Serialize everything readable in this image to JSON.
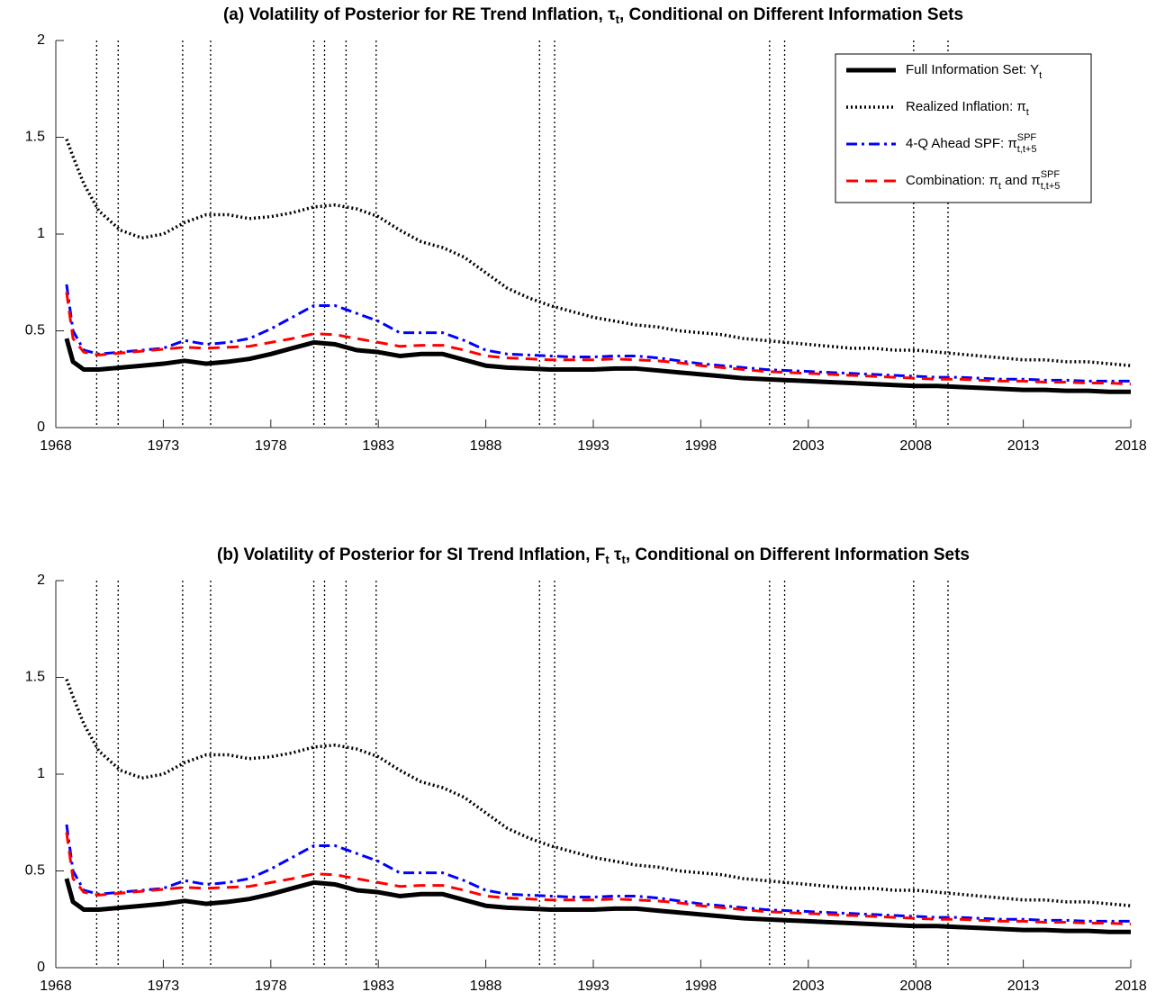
{
  "chart_data": [
    {
      "type": "line",
      "title": [
        {
          "t": "(a) Volatility of Posterior for RE Trend Inflation, τ"
        },
        {
          "sub": "t"
        },
        {
          "t": ", Conditional on Different Information Sets"
        }
      ],
      "x": [
        1968.5,
        1968.8,
        1969.3,
        1970,
        1971,
        1972,
        1973,
        1974,
        1975,
        1976,
        1977,
        1978,
        1979,
        1980,
        1981,
        1982,
        1983,
        1984,
        1985,
        1986,
        1987,
        1988,
        1989,
        1990,
        1991,
        1992,
        1993,
        1994,
        1995,
        1996,
        1997,
        1998,
        1999,
        2000,
        2001,
        2002,
        2003,
        2004,
        2005,
        2006,
        2007,
        2008,
        2009,
        2010,
        2011,
        2012,
        2013,
        2014,
        2015,
        2016,
        2017,
        2018
      ],
      "series": [
        {
          "name": [
            {
              "t": "Full Information Set: Y"
            },
            {
              "sub": "t"
            }
          ],
          "color": "#000000",
          "style": "solid",
          "values": [
            0.46,
            0.34,
            0.3,
            0.3,
            0.31,
            0.32,
            0.33,
            0.345,
            0.33,
            0.34,
            0.355,
            0.38,
            0.41,
            0.44,
            0.43,
            0.4,
            0.39,
            0.37,
            0.38,
            0.38,
            0.35,
            0.32,
            0.31,
            0.305,
            0.3,
            0.3,
            0.3,
            0.305,
            0.305,
            0.295,
            0.285,
            0.275,
            0.265,
            0.255,
            0.25,
            0.245,
            0.24,
            0.235,
            0.23,
            0.225,
            0.22,
            0.215,
            0.215,
            0.21,
            0.205,
            0.2,
            0.195,
            0.195,
            0.19,
            0.19,
            0.185,
            0.185
          ]
        },
        {
          "name": [
            {
              "t": "Realized Inflation: π"
            },
            {
              "sub": "t"
            }
          ],
          "color": "#000000",
          "style": "dotted",
          "values": [
            1.49,
            1.4,
            1.26,
            1.12,
            1.02,
            0.98,
            1.0,
            1.06,
            1.1,
            1.1,
            1.08,
            1.09,
            1.11,
            1.14,
            1.15,
            1.13,
            1.09,
            1.02,
            0.96,
            0.93,
            0.88,
            0.8,
            0.72,
            0.67,
            0.63,
            0.6,
            0.57,
            0.55,
            0.53,
            0.52,
            0.5,
            0.49,
            0.48,
            0.46,
            0.45,
            0.44,
            0.43,
            0.42,
            0.41,
            0.41,
            0.4,
            0.4,
            0.39,
            0.38,
            0.37,
            0.36,
            0.35,
            0.35,
            0.34,
            0.34,
            0.33,
            0.32
          ]
        },
        {
          "name": [
            {
              "t": "4-Q Ahead SPF: π"
            },
            {
              "sup": "SPF"
            },
            {
              "sub": "t,t+5"
            }
          ],
          "color": "#0000ff",
          "style": "dashdot",
          "values": [
            0.74,
            0.5,
            0.4,
            0.38,
            0.39,
            0.4,
            0.41,
            0.45,
            0.43,
            0.44,
            0.46,
            0.51,
            0.57,
            0.63,
            0.63,
            0.59,
            0.55,
            0.49,
            0.49,
            0.49,
            0.45,
            0.4,
            0.38,
            0.375,
            0.37,
            0.365,
            0.365,
            0.37,
            0.37,
            0.36,
            0.345,
            0.33,
            0.32,
            0.31,
            0.3,
            0.295,
            0.29,
            0.285,
            0.28,
            0.275,
            0.27,
            0.265,
            0.26,
            0.26,
            0.255,
            0.25,
            0.25,
            0.245,
            0.245,
            0.24,
            0.24,
            0.24
          ]
        },
        {
          "name": [
            {
              "t": "Combination: π"
            },
            {
              "sub": "t"
            },
            {
              "t": " and π"
            },
            {
              "sup": "SPF"
            },
            {
              "sub": "t,t+5"
            }
          ],
          "color": "#ff0000",
          "style": "dashed",
          "values": [
            0.7,
            0.46,
            0.39,
            0.375,
            0.385,
            0.395,
            0.405,
            0.415,
            0.41,
            0.415,
            0.42,
            0.44,
            0.46,
            0.485,
            0.48,
            0.46,
            0.44,
            0.42,
            0.425,
            0.425,
            0.4,
            0.37,
            0.36,
            0.355,
            0.35,
            0.35,
            0.35,
            0.355,
            0.35,
            0.345,
            0.335,
            0.32,
            0.31,
            0.3,
            0.29,
            0.285,
            0.28,
            0.275,
            0.27,
            0.265,
            0.26,
            0.255,
            0.25,
            0.25,
            0.245,
            0.24,
            0.24,
            0.235,
            0.235,
            0.23,
            0.23,
            0.225
          ]
        }
      ],
      "recession_lines": [
        1969.9,
        1970.9,
        1973.9,
        1975.2,
        1980.0,
        1980.5,
        1981.5,
        1982.9,
        1990.5,
        1991.2,
        2001.2,
        2001.9,
        2007.9,
        2009.5
      ],
      "xlim": [
        1968,
        2018
      ],
      "xticks": [
        1968,
        1973,
        1978,
        1983,
        1988,
        1993,
        1998,
        2003,
        2008,
        2013,
        2018
      ],
      "ylim": [
        0,
        2
      ],
      "yticks": [
        0,
        0.5,
        1,
        1.5,
        2
      ],
      "legend": "northeast"
    },
    {
      "type": "line",
      "title": [
        {
          "t": "(b) Volatility of Posterior for SI Trend Inflation, F"
        },
        {
          "sub": "t"
        },
        {
          "t": " τ"
        },
        {
          "sub": "t"
        },
        {
          "t": ", Conditional on Different Information Sets"
        }
      ],
      "x": [
        1968.5,
        1968.8,
        1969.3,
        1970,
        1971,
        1972,
        1973,
        1974,
        1975,
        1976,
        1977,
        1978,
        1979,
        1980,
        1981,
        1982,
        1983,
        1984,
        1985,
        1986,
        1987,
        1988,
        1989,
        1990,
        1991,
        1992,
        1993,
        1994,
        1995,
        1996,
        1997,
        1998,
        1999,
        2000,
        2001,
        2002,
        2003,
        2004,
        2005,
        2006,
        2007,
        2008,
        2009,
        2010,
        2011,
        2012,
        2013,
        2014,
        2015,
        2016,
        2017,
        2018
      ],
      "series": [
        {
          "color": "#000000",
          "style": "solid",
          "values": [
            0.46,
            0.34,
            0.3,
            0.3,
            0.31,
            0.32,
            0.33,
            0.345,
            0.33,
            0.34,
            0.355,
            0.38,
            0.41,
            0.44,
            0.43,
            0.4,
            0.39,
            0.37,
            0.38,
            0.38,
            0.35,
            0.32,
            0.31,
            0.305,
            0.3,
            0.3,
            0.3,
            0.305,
            0.305,
            0.295,
            0.285,
            0.275,
            0.265,
            0.255,
            0.25,
            0.245,
            0.24,
            0.235,
            0.23,
            0.225,
            0.22,
            0.215,
            0.215,
            0.21,
            0.205,
            0.2,
            0.195,
            0.195,
            0.19,
            0.19,
            0.185,
            0.185
          ]
        },
        {
          "color": "#000000",
          "style": "dotted",
          "values": [
            1.49,
            1.4,
            1.26,
            1.12,
            1.02,
            0.98,
            1.0,
            1.06,
            1.1,
            1.1,
            1.08,
            1.09,
            1.11,
            1.14,
            1.15,
            1.13,
            1.09,
            1.02,
            0.96,
            0.93,
            0.88,
            0.8,
            0.72,
            0.67,
            0.63,
            0.6,
            0.57,
            0.55,
            0.53,
            0.52,
            0.5,
            0.49,
            0.48,
            0.46,
            0.45,
            0.44,
            0.43,
            0.42,
            0.41,
            0.41,
            0.4,
            0.4,
            0.39,
            0.38,
            0.37,
            0.36,
            0.35,
            0.35,
            0.34,
            0.34,
            0.33,
            0.32
          ]
        },
        {
          "color": "#0000ff",
          "style": "dashdot",
          "values": [
            0.74,
            0.5,
            0.4,
            0.38,
            0.39,
            0.4,
            0.41,
            0.45,
            0.43,
            0.44,
            0.46,
            0.51,
            0.57,
            0.63,
            0.63,
            0.59,
            0.55,
            0.49,
            0.49,
            0.49,
            0.45,
            0.4,
            0.38,
            0.375,
            0.37,
            0.365,
            0.365,
            0.37,
            0.37,
            0.36,
            0.345,
            0.33,
            0.32,
            0.31,
            0.3,
            0.295,
            0.29,
            0.285,
            0.28,
            0.275,
            0.27,
            0.265,
            0.26,
            0.26,
            0.255,
            0.25,
            0.25,
            0.245,
            0.245,
            0.24,
            0.24,
            0.24
          ]
        },
        {
          "color": "#ff0000",
          "style": "dashed",
          "values": [
            0.7,
            0.46,
            0.39,
            0.375,
            0.385,
            0.395,
            0.405,
            0.415,
            0.41,
            0.415,
            0.42,
            0.44,
            0.46,
            0.485,
            0.48,
            0.46,
            0.44,
            0.42,
            0.425,
            0.425,
            0.4,
            0.37,
            0.36,
            0.355,
            0.35,
            0.35,
            0.35,
            0.355,
            0.35,
            0.345,
            0.335,
            0.32,
            0.31,
            0.3,
            0.29,
            0.285,
            0.28,
            0.275,
            0.27,
            0.265,
            0.26,
            0.255,
            0.25,
            0.25,
            0.245,
            0.24,
            0.24,
            0.235,
            0.235,
            0.23,
            0.23,
            0.225
          ]
        }
      ],
      "recession_lines": [
        1969.9,
        1970.9,
        1973.9,
        1975.2,
        1980.0,
        1980.5,
        1981.5,
        1982.9,
        1990.5,
        1991.2,
        2001.2,
        2001.9,
        2007.9,
        2009.5
      ],
      "xlim": [
        1968,
        2018
      ],
      "xticks": [
        1968,
        1973,
        1978,
        1983,
        1988,
        1993,
        1998,
        2003,
        2008,
        2013,
        2018
      ],
      "ylim": [
        0,
        2
      ],
      "yticks": [
        0,
        0.5,
        1,
        1.5,
        2
      ]
    }
  ]
}
